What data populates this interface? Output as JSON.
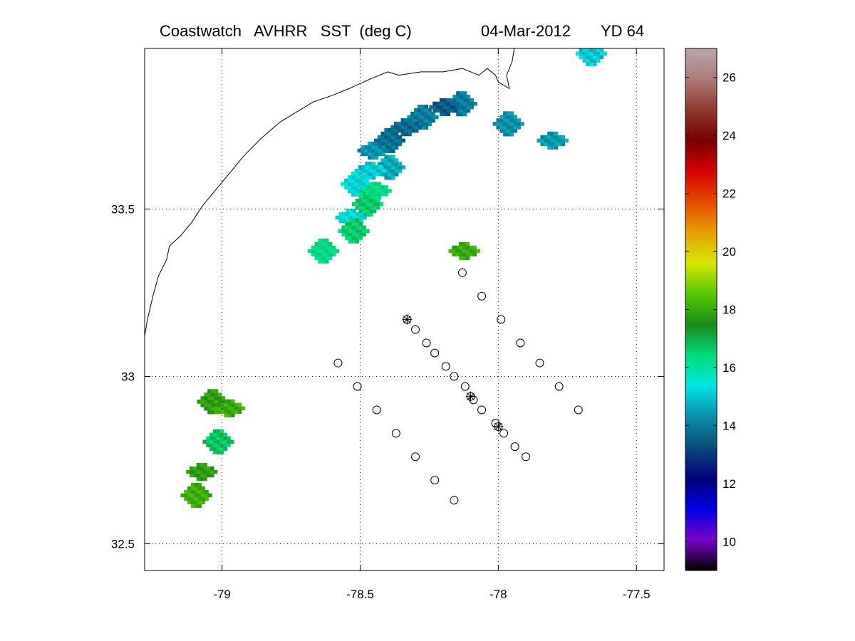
{
  "title": {
    "product": "Coastwatch   AVHRR   SST  (deg C)",
    "date": "04-Mar-2012",
    "yearday": "YD 64"
  },
  "chart_data": {
    "type": "heatmap",
    "title": "Coastwatch   AVHRR   SST  (deg C)          04-Mar-2012     YD 64",
    "xlabel": "",
    "ylabel": "",
    "xlim": [
      -79.28,
      -77.4
    ],
    "ylim": [
      32.42,
      33.98
    ],
    "grid": true,
    "grid_style": "dotted",
    "x_ticks": [
      -79,
      -78.5,
      -78,
      -77.5
    ],
    "x_tick_labels": [
      "-79",
      "-78.5",
      "-78",
      "-77.5"
    ],
    "y_ticks": [
      32.5,
      33,
      33.5
    ],
    "y_tick_labels": [
      "32.5",
      "33",
      "33.5"
    ],
    "colorbar": {
      "label": "",
      "range": [
        9,
        27
      ],
      "ticks": [
        10,
        12,
        14,
        16,
        18,
        20,
        22,
        24,
        26
      ],
      "tick_labels": [
        "10",
        "12",
        "14",
        "16",
        "18",
        "20",
        "22",
        "24",
        "26"
      ],
      "colors": [
        "#000000",
        "#7a00c8",
        "#0000e6",
        "#00007a",
        "#0a4a7a",
        "#0a8fa8",
        "#00e5e5",
        "#00dd7a",
        "#1a8a1a",
        "#55c800",
        "#d8e600",
        "#e6a000",
        "#e64a00",
        "#d60000",
        "#7a0000",
        "#8a3a2a",
        "#b07a7a",
        "#b8a8a8"
      ]
    },
    "sst_patches": [
      {
        "region": "main filament",
        "points": [
          {
            "lon": -78.14,
            "lat": 33.81,
            "sst": 14.0
          },
          {
            "lon": -78.2,
            "lat": 33.8,
            "sst": 13.5
          },
          {
            "lon": -78.28,
            "lat": 33.77,
            "sst": 14.0
          },
          {
            "lon": -78.34,
            "lat": 33.74,
            "sst": 13.7
          },
          {
            "lon": -78.4,
            "lat": 33.7,
            "sst": 13.8
          },
          {
            "lon": -78.46,
            "lat": 33.67,
            "sst": 14.3
          },
          {
            "lon": -78.4,
            "lat": 33.62,
            "sst": 14.6
          },
          {
            "lon": -78.47,
            "lat": 33.61,
            "sst": 15.0
          },
          {
            "lon": -78.52,
            "lat": 33.57,
            "sst": 15.2
          },
          {
            "lon": -78.45,
            "lat": 33.55,
            "sst": 16.3
          },
          {
            "lon": -78.48,
            "lat": 33.51,
            "sst": 16.6
          },
          {
            "lon": -78.54,
            "lat": 33.47,
            "sst": 15.3
          },
          {
            "lon": -78.53,
            "lat": 33.43,
            "sst": 16.6
          }
        ]
      },
      {
        "region": "north-east blobs",
        "points": [
          {
            "lon": -77.97,
            "lat": 33.75,
            "sst": 14.3
          },
          {
            "lon": -77.81,
            "lat": 33.7,
            "sst": 14.4
          },
          {
            "lon": -77.67,
            "lat": 33.96,
            "sst": 15.0
          }
        ]
      },
      {
        "region": "west of filament",
        "points": [
          {
            "lon": -78.64,
            "lat": 33.37,
            "sst": 16.3
          },
          {
            "lon": -78.13,
            "lat": 33.37,
            "sst": 18.0
          }
        ]
      },
      {
        "region": "south-west nearshore",
        "points": [
          {
            "lon": -79.04,
            "lat": 32.92,
            "sst": 17.8
          },
          {
            "lon": -78.98,
            "lat": 32.9,
            "sst": 18.0
          },
          {
            "lon": -79.02,
            "lat": 32.8,
            "sst": 16.7
          },
          {
            "lon": -79.08,
            "lat": 32.71,
            "sst": 17.8
          },
          {
            "lon": -79.1,
            "lat": 32.64,
            "sst": 18.1
          }
        ]
      }
    ],
    "stations": [
      {
        "lon": -78.13,
        "lat": 33.31,
        "marker": "circle"
      },
      {
        "lon": -78.06,
        "lat": 33.24,
        "marker": "circle"
      },
      {
        "lon": -77.99,
        "lat": 33.17,
        "marker": "circle"
      },
      {
        "lon": -77.92,
        "lat": 33.1,
        "marker": "circle"
      },
      {
        "lon": -77.85,
        "lat": 33.04,
        "marker": "circle"
      },
      {
        "lon": -77.78,
        "lat": 32.97,
        "marker": "circle"
      },
      {
        "lon": -77.71,
        "lat": 32.9,
        "marker": "circle"
      },
      {
        "lon": -78.33,
        "lat": 33.17,
        "marker": "circle-star"
      },
      {
        "lon": -78.3,
        "lat": 33.14,
        "marker": "circle"
      },
      {
        "lon": -78.26,
        "lat": 33.1,
        "marker": "circle"
      },
      {
        "lon": -78.23,
        "lat": 33.07,
        "marker": "circle"
      },
      {
        "lon": -78.19,
        "lat": 33.03,
        "marker": "circle"
      },
      {
        "lon": -78.16,
        "lat": 33.0,
        "marker": "circle"
      },
      {
        "lon": -78.12,
        "lat": 32.97,
        "marker": "circle"
      },
      {
        "lon": -78.1,
        "lat": 32.94,
        "marker": "circle-star"
      },
      {
        "lon": -78.09,
        "lat": 32.93,
        "marker": "circle"
      },
      {
        "lon": -78.06,
        "lat": 32.9,
        "marker": "circle"
      },
      {
        "lon": -78.01,
        "lat": 32.86,
        "marker": "circle"
      },
      {
        "lon": -78.0,
        "lat": 32.85,
        "marker": "circle-star"
      },
      {
        "lon": -77.98,
        "lat": 32.83,
        "marker": "circle"
      },
      {
        "lon": -77.94,
        "lat": 32.79,
        "marker": "circle"
      },
      {
        "lon": -77.9,
        "lat": 32.76,
        "marker": "circle"
      },
      {
        "lon": -78.58,
        "lat": 33.04,
        "marker": "circle"
      },
      {
        "lon": -78.51,
        "lat": 32.97,
        "marker": "circle"
      },
      {
        "lon": -78.44,
        "lat": 32.9,
        "marker": "circle"
      },
      {
        "lon": -78.37,
        "lat": 32.83,
        "marker": "circle"
      },
      {
        "lon": -78.3,
        "lat": 32.76,
        "marker": "circle"
      },
      {
        "lon": -78.23,
        "lat": 32.69,
        "marker": "circle"
      },
      {
        "lon": -78.16,
        "lat": 32.63,
        "marker": "circle"
      }
    ],
    "coastline": [
      {
        "lon": -77.94,
        "lat": 33.99
      },
      {
        "lon": -77.95,
        "lat": 33.94
      },
      {
        "lon": -77.97,
        "lat": 33.9
      },
      {
        "lon": -77.96,
        "lat": 33.86
      },
      {
        "lon": -78.0,
        "lat": 33.88
      },
      {
        "lon": -78.01,
        "lat": 33.9
      },
      {
        "lon": -78.04,
        "lat": 33.92
      },
      {
        "lon": -78.07,
        "lat": 33.9
      },
      {
        "lon": -78.13,
        "lat": 33.92
      },
      {
        "lon": -78.2,
        "lat": 33.91
      },
      {
        "lon": -78.28,
        "lat": 33.91
      },
      {
        "lon": -78.36,
        "lat": 33.9
      },
      {
        "lon": -78.4,
        "lat": 33.91
      },
      {
        "lon": -78.46,
        "lat": 33.89
      },
      {
        "lon": -78.54,
        "lat": 33.86
      },
      {
        "lon": -78.6,
        "lat": 33.84
      },
      {
        "lon": -78.67,
        "lat": 33.82
      },
      {
        "lon": -78.71,
        "lat": 33.8
      },
      {
        "lon": -78.79,
        "lat": 33.76
      },
      {
        "lon": -78.86,
        "lat": 33.71
      },
      {
        "lon": -78.92,
        "lat": 33.66
      },
      {
        "lon": -78.97,
        "lat": 33.61
      },
      {
        "lon": -79.02,
        "lat": 33.56
      },
      {
        "lon": -79.07,
        "lat": 33.51
      },
      {
        "lon": -79.11,
        "lat": 33.46
      },
      {
        "lon": -79.15,
        "lat": 33.42
      },
      {
        "lon": -79.19,
        "lat": 33.39
      },
      {
        "lon": -79.2,
        "lat": 33.35
      },
      {
        "lon": -79.23,
        "lat": 33.3
      },
      {
        "lon": -79.25,
        "lat": 33.24
      },
      {
        "lon": -79.27,
        "lat": 33.17
      },
      {
        "lon": -79.28,
        "lat": 33.12
      }
    ]
  }
}
